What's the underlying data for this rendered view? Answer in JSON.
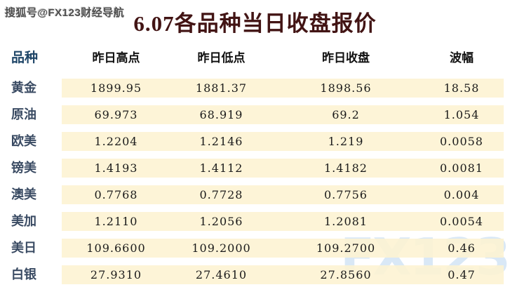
{
  "watermarks": {
    "top_left": "搜狐号@FX123财经导航",
    "bottom_right": "FX123"
  },
  "title": "6.07各品种当日收盘报价",
  "table": {
    "headers": [
      "品种",
      "昨日高点",
      "昨日低点",
      "昨日收盘",
      "波幅"
    ],
    "rows": [
      {
        "label": "黄金",
        "high": "1899.95",
        "low": "1881.37",
        "close": "1898.56",
        "range": "18.58"
      },
      {
        "label": "原油",
        "high": "69.973",
        "low": "68.919",
        "close": "69.2",
        "range": "1.054"
      },
      {
        "label": "欧美",
        "high": "1.2204",
        "low": "1.2146",
        "close": "1.219",
        "range": "0.0058"
      },
      {
        "label": "镑美",
        "high": "1.4193",
        "low": "1.4112",
        "close": "1.4182",
        "range": "0.0081"
      },
      {
        "label": "澳美",
        "high": "0.7768",
        "low": "0.7728",
        "close": "0.7756",
        "range": "0.004"
      },
      {
        "label": "美加",
        "high": "1.2110",
        "low": "1.2056",
        "close": "1.2081",
        "range": "0.0054"
      },
      {
        "label": "美日",
        "high": "109.6600",
        "low": "109.2000",
        "close": "109.2700",
        "range": "0.46"
      },
      {
        "label": "白银",
        "high": "27.9310",
        "low": "27.4610",
        "close": "27.8560",
        "range": "0.47"
      }
    ]
  },
  "colors": {
    "title_red": "#421414",
    "header_blue": "#1f4668",
    "row_label_blue": "#3a4b63",
    "band_cream": "#fdf3d1",
    "watermark_blue": "#bad5ee",
    "background": "#ffffff"
  }
}
